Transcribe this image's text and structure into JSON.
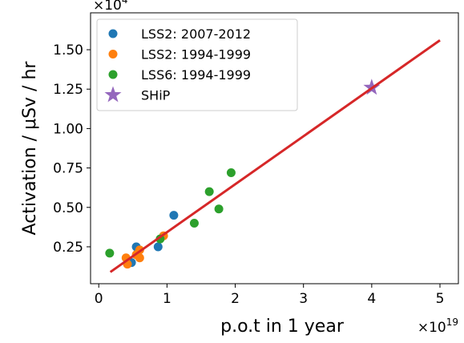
{
  "chart_data": {
    "type": "scatter",
    "xlabel": "p.o.t in 1 year",
    "ylabel": "Activation / μSv / hr",
    "x_offset": {
      "base": "×10",
      "exp": "19"
    },
    "y_offset": {
      "base": "×10",
      "exp": "4"
    },
    "xlim": [
      -0.12,
      5.27
    ],
    "ylim": [
      0.016,
      1.734
    ],
    "xticks": [
      0,
      1,
      2,
      3,
      4,
      5
    ],
    "yticks": [
      0.25,
      {
        "value": 0.5,
        "label": "0.50"
      },
      0.75,
      {
        "value": 1,
        "label": "1.00"
      },
      1.25,
      {
        "value": 1.5,
        "label": "1.50"
      }
    ],
    "legend": "upper left",
    "series": [
      {
        "name": "LSS2: 2007-2012",
        "color": "#1f77b4",
        "marker": "circle",
        "x": [
          0.55,
          0.48,
          0.87,
          1.1
        ],
        "values": [
          0.25,
          0.15,
          0.25,
          0.45
        ]
      },
      {
        "name": "LSS2: 1994-1999",
        "color": "#ff7f0e",
        "marker": "circle",
        "x": [
          0.4,
          0.42,
          0.55,
          0.6,
          0.6,
          0.95
        ],
        "values": [
          0.18,
          0.14,
          0.2,
          0.18,
          0.23,
          0.32
        ]
      },
      {
        "name": "LSS6: 1994-1999",
        "color": "#2ca02c",
        "marker": "circle",
        "x": [
          0.16,
          0.9,
          1.4,
          1.62,
          1.76,
          1.94
        ],
        "values": [
          0.21,
          0.3,
          0.4,
          0.6,
          0.49,
          0.72
        ]
      },
      {
        "name": "SHiP",
        "color": "#9467bd",
        "marker": "star",
        "x": [
          4
        ],
        "values": [
          1.26
        ]
      }
    ],
    "fit": {
      "color": "#d62728",
      "x": [
        0.17,
        5
      ],
      "values": [
        0.09,
        1.56
      ]
    }
  }
}
